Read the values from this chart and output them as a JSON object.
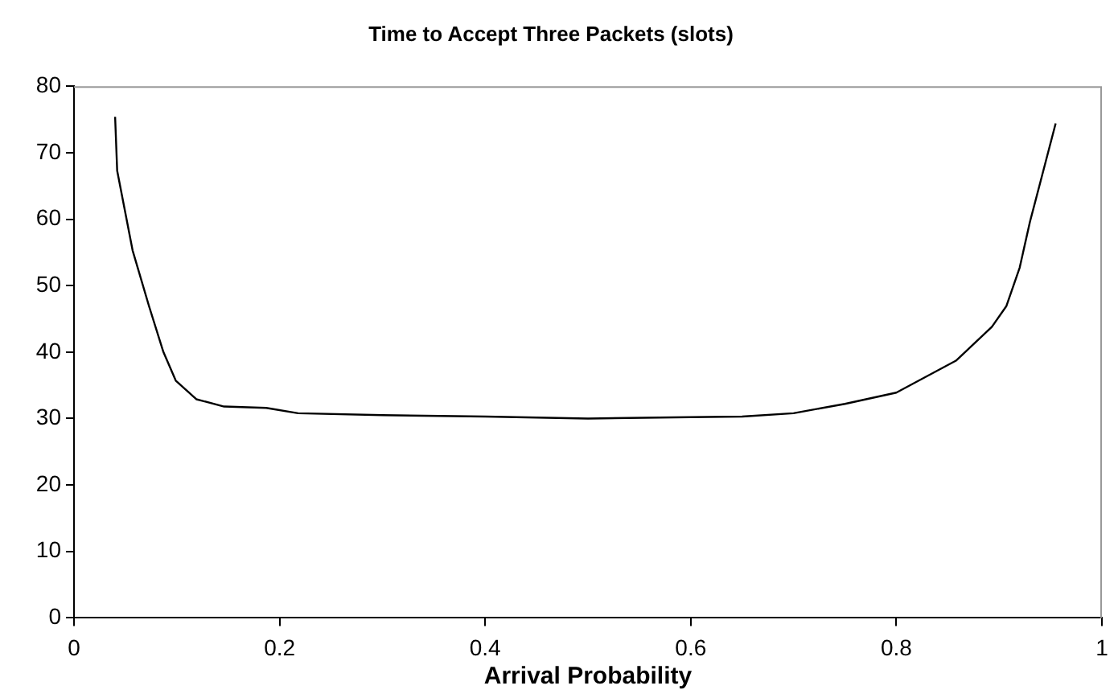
{
  "chart_data": {
    "type": "line",
    "title": "Time to Accept Three Packets (slots)",
    "xlabel": "Arrival Probability",
    "xlim": [
      0,
      1
    ],
    "xticks": [
      0,
      0.2,
      0.4,
      0.6,
      0.8,
      1
    ],
    "ylim": [
      0,
      80
    ],
    "yticks": [
      0,
      10,
      20,
      30,
      40,
      50,
      60,
      70,
      80
    ],
    "grid": false,
    "legend": false,
    "marker": "none",
    "line_style": "solid",
    "series": [
      {
        "color": "#000000",
        "x": [
          0.04,
          0.042,
          0.057,
          0.073,
          0.087,
          0.099,
          0.119,
          0.146,
          0.187,
          0.218,
          0.3,
          0.4,
          0.5,
          0.6,
          0.65,
          0.7,
          0.75,
          0.8,
          0.858,
          0.893,
          0.907,
          0.92,
          0.93,
          0.94,
          0.955
        ],
        "values": [
          75.4,
          67.3,
          55.3,
          46.9,
          40,
          35.7,
          32.9,
          31.8,
          31.6,
          30.8,
          30.5,
          30.3,
          30,
          30.2,
          30.3,
          30.8,
          32.2,
          33.9,
          38.7,
          43.8,
          46.9,
          52.7,
          59.6,
          65.5,
          74.4
        ]
      }
    ]
  }
}
